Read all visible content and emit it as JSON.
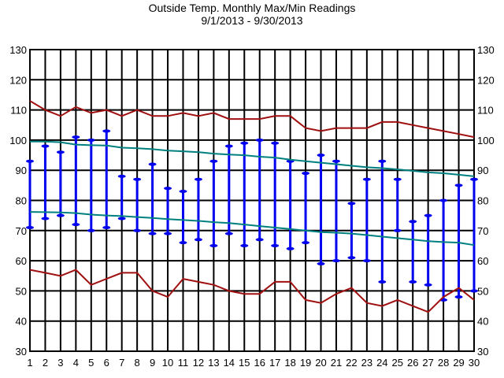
{
  "chart_data": {
    "type": "line",
    "title": "Outside Temp. Monthly Max/Min Readings",
    "subtitle": "9/1/2013 - 9/30/2013",
    "xlabel": "",
    "ylabel": "",
    "x": [
      1,
      2,
      3,
      4,
      5,
      6,
      7,
      8,
      9,
      10,
      11,
      12,
      13,
      14,
      15,
      16,
      17,
      18,
      19,
      20,
      21,
      22,
      23,
      24,
      25,
      26,
      27,
      28,
      29,
      30
    ],
    "ylim": [
      30,
      130
    ],
    "yticks": [
      30,
      40,
      50,
      60,
      70,
      80,
      90,
      100,
      110,
      120,
      130
    ],
    "grid": true,
    "record_high": [
      113,
      110,
      108,
      111,
      109,
      110,
      108,
      110,
      108,
      108,
      109,
      108,
      109,
      107,
      107,
      107,
      108,
      108,
      104,
      103,
      104,
      104,
      104,
      106,
      106,
      105,
      104,
      103,
      102,
      101
    ],
    "record_low": [
      57,
      56,
      55,
      57,
      52,
      54,
      56,
      56,
      50,
      48,
      54,
      53,
      52,
      50,
      49,
      49,
      53,
      53,
      47,
      46,
      49,
      51,
      46,
      45,
      47,
      45,
      43,
      48,
      51,
      47
    ],
    "normal_high": [
      99.5,
      99.5,
      99.3,
      98.5,
      98.3,
      98.2,
      97.5,
      97.3,
      97,
      96.5,
      96.3,
      96,
      95.5,
      95.2,
      95,
      94.5,
      94.2,
      93.5,
      93,
      92.5,
      92,
      91.5,
      91,
      90.7,
      90.3,
      89.8,
      89.3,
      89,
      88.5,
      88
    ],
    "normal_low": [
      76.2,
      76.1,
      76,
      75.8,
      75.3,
      75,
      74.8,
      74.5,
      74.2,
      73.8,
      73.5,
      73.2,
      72.8,
      72.5,
      72,
      71.5,
      71,
      70.5,
      70,
      69.5,
      69.3,
      69,
      68.5,
      68,
      67.5,
      67,
      66.5,
      66.2,
      66,
      65.2
    ],
    "daily_high": [
      93,
      98,
      96,
      101,
      100,
      103,
      88,
      87,
      92,
      84,
      83,
      87,
      93,
      98,
      99,
      100,
      99,
      93,
      89,
      95,
      93,
      79,
      87,
      93,
      87,
      73,
      75,
      80,
      85,
      87
    ],
    "daily_low": [
      71,
      74,
      75,
      72,
      70,
      71,
      74,
      70,
      69,
      69,
      66,
      67,
      65,
      69,
      65,
      67,
      65,
      64,
      66,
      59,
      60,
      61,
      60,
      53,
      70,
      53,
      52,
      47,
      48,
      50
    ],
    "colors": {
      "record": "#a01010",
      "normal": "#008080",
      "daily": "#0000ee",
      "grid": "#000000"
    }
  }
}
